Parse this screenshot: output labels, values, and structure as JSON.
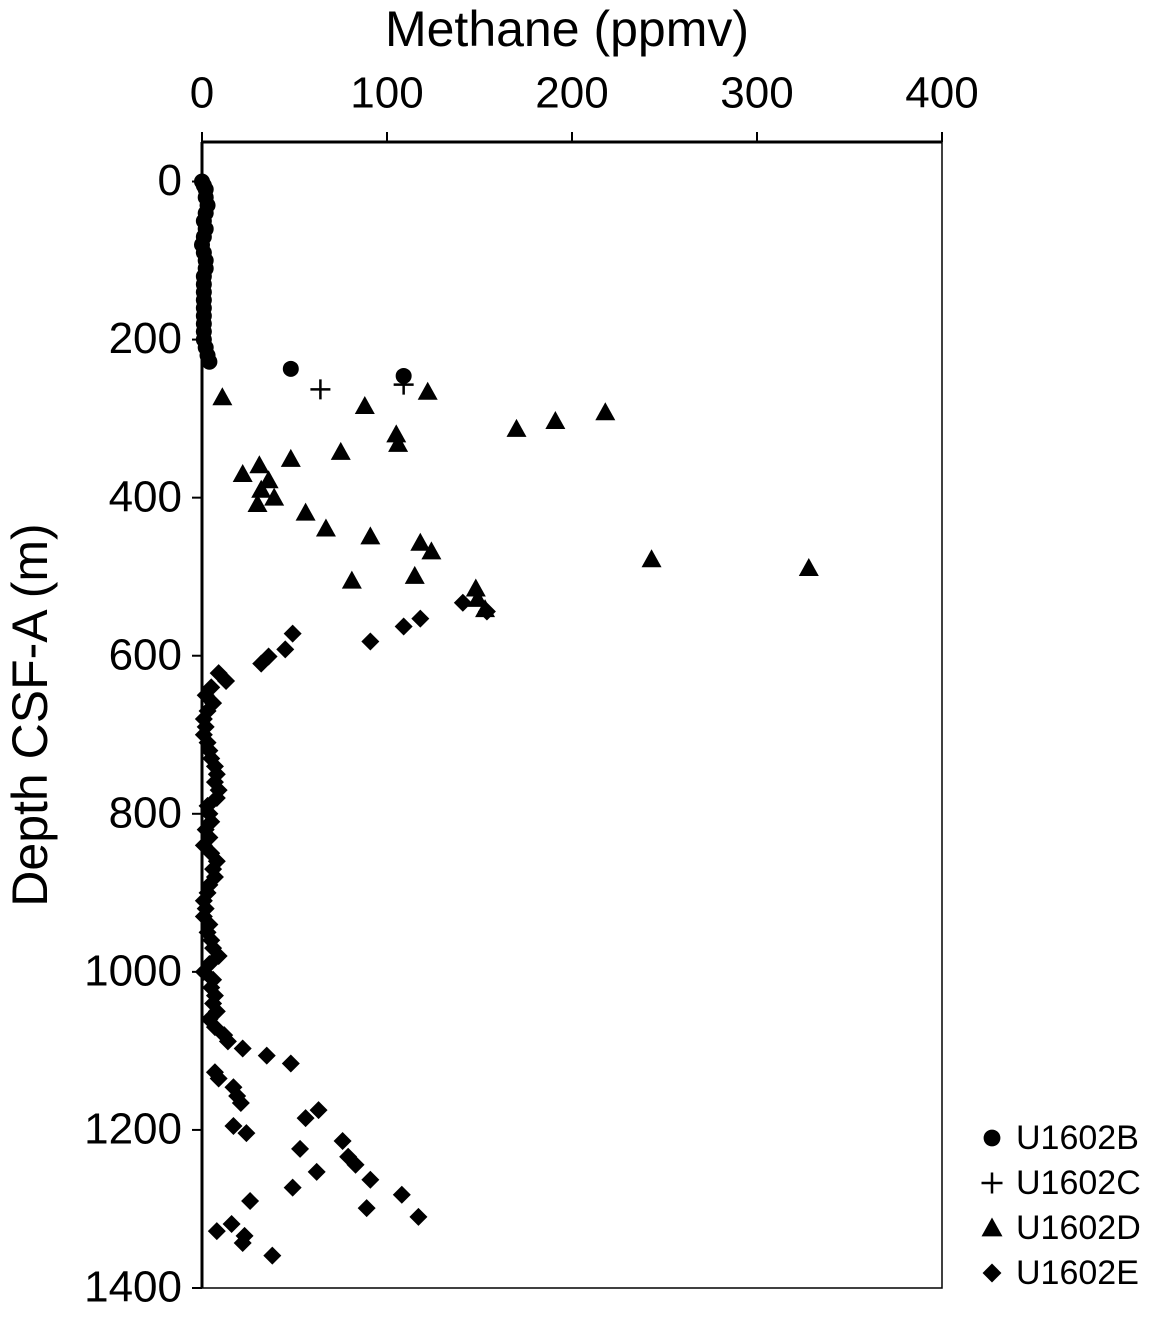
{
  "chart_data": {
    "type": "scatter",
    "xlabel": "Methane (ppmv)",
    "ylabel": "Depth CSF-A (m)",
    "xlim": [
      0,
      400
    ],
    "xticks": [
      0,
      100,
      200,
      300,
      400
    ],
    "ylim": [
      1400,
      -50
    ],
    "yticks": [
      0,
      200,
      400,
      600,
      800,
      1000,
      1200,
      1400
    ],
    "x_axis_position": "top",
    "legend_position": "lower right",
    "grid": false,
    "series": [
      {
        "name": "U1602B",
        "marker": "circle",
        "color": "#000000",
        "x": [
          0,
          1,
          2,
          2,
          3,
          2,
          1,
          2,
          1,
          0,
          1,
          2,
          2,
          1,
          1,
          1,
          1,
          1,
          1,
          1,
          1,
          1,
          2,
          3,
          4,
          48,
          109
        ],
        "y": [
          0,
          5,
          10,
          20,
          30,
          40,
          50,
          60,
          70,
          80,
          90,
          100,
          110,
          120,
          130,
          140,
          150,
          160,
          170,
          180,
          190,
          200,
          210,
          220,
          228,
          237,
          246
        ]
      },
      {
        "name": "U1602C",
        "marker": "plus",
        "color": "#000000",
        "x": [
          64,
          109
        ],
        "y": [
          263,
          257
        ]
      },
      {
        "name": "U1602D",
        "marker": "triangle",
        "color": "#000000",
        "x": [
          11,
          88,
          122,
          105,
          106,
          170,
          191,
          218,
          75,
          48,
          31,
          22,
          36,
          32,
          39,
          30,
          56,
          67,
          91,
          118,
          124,
          115,
          81,
          243,
          328,
          148,
          149,
          153
        ],
        "y": [
          273,
          284,
          266,
          320,
          332,
          313,
          303,
          292,
          342,
          351,
          359,
          370,
          378,
          390,
          400,
          408,
          419,
          439,
          449,
          457,
          468,
          499,
          505,
          478,
          489,
          515,
          528,
          541
        ]
      },
      {
        "name": "U1602E",
        "marker": "diamond",
        "color": "#000000",
        "x": [
          141,
          154,
          118,
          109,
          49,
          91,
          45,
          36,
          32,
          9,
          13,
          5,
          2,
          6,
          3,
          1,
          2,
          1,
          3,
          4,
          5,
          7,
          8,
          7,
          9,
          8,
          3,
          4,
          5,
          2,
          4,
          1,
          5,
          8,
          6,
          7,
          4,
          3,
          1,
          2,
          1,
          4,
          3,
          5,
          6,
          9,
          4,
          1,
          6,
          5,
          7,
          6,
          8,
          4,
          7,
          12,
          14,
          22,
          35,
          48,
          7,
          9,
          17,
          19,
          21,
          63,
          56,
          17,
          24,
          76,
          53,
          79,
          83,
          62,
          91,
          49,
          108,
          26,
          89,
          117,
          16,
          8,
          23,
          22,
          38
        ],
        "y": [
          533,
          544,
          553,
          563,
          572,
          582,
          592,
          601,
          610,
          622,
          632,
          640,
          650,
          660,
          670,
          680,
          690,
          700,
          710,
          720,
          730,
          740,
          750,
          760,
          770,
          780,
          790,
          800,
          810,
          820,
          830,
          840,
          850,
          860,
          870,
          880,
          890,
          900,
          910,
          920,
          930,
          940,
          950,
          960,
          970,
          980,
          990,
          1000,
          1010,
          1020,
          1030,
          1040,
          1050,
          1060,
          1070,
          1080,
          1088,
          1097,
          1106,
          1116,
          1127,
          1135,
          1146,
          1157,
          1166,
          1175,
          1185,
          1195,
          1204,
          1214,
          1224,
          1234,
          1244,
          1253,
          1263,
          1273,
          1282,
          1290,
          1299,
          1310,
          1319,
          1328,
          1334,
          1343,
          1359
        ]
      }
    ]
  }
}
